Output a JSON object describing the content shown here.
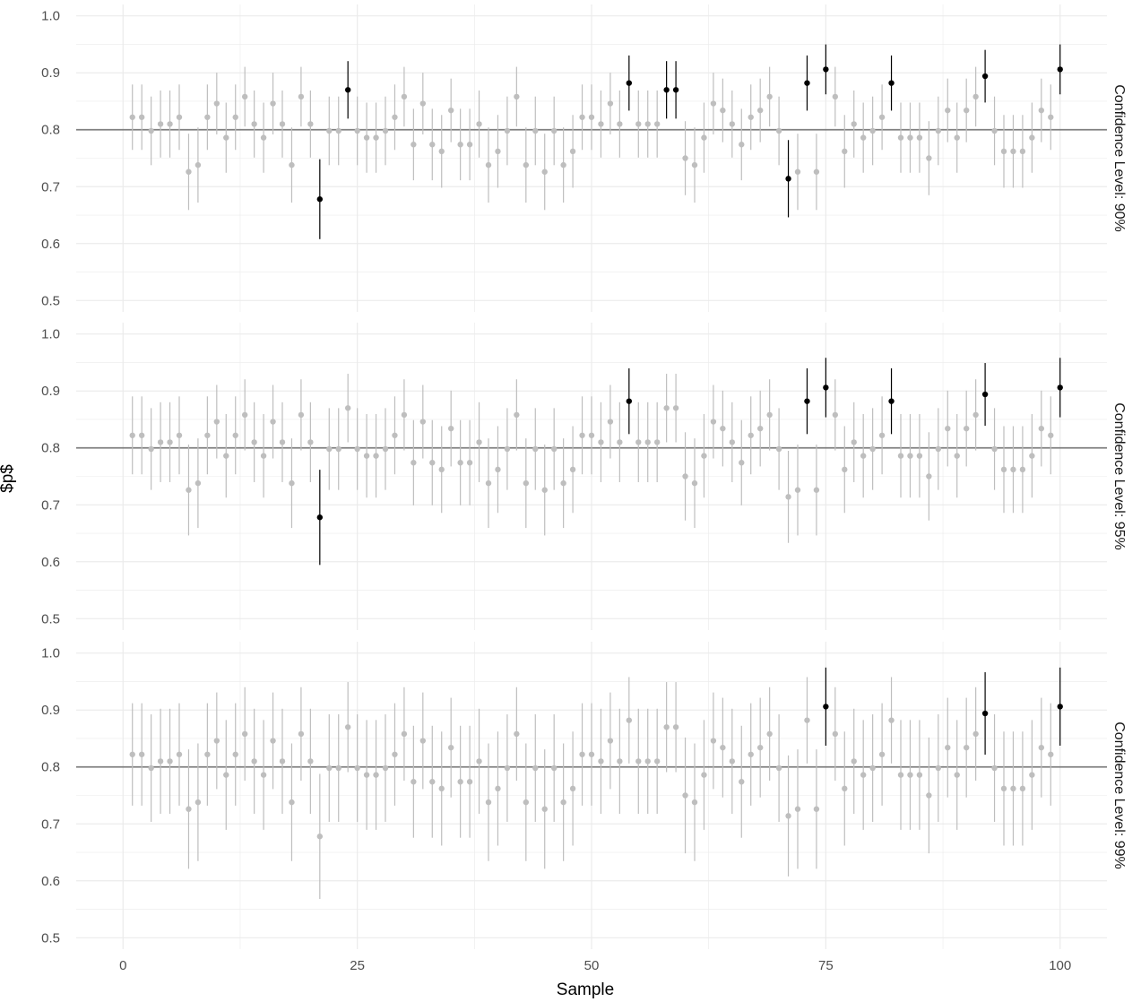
{
  "chart_data": {
    "type": "scatter",
    "subtype": "errorbar-facets",
    "xlabel": "Sample",
    "ylabel": "$p$",
    "xlim": [
      -5,
      105
    ],
    "ylim": [
      0.48,
      1.02
    ],
    "x_ticks": [
      0,
      25,
      50,
      75,
      100
    ],
    "x_tick_labels": [
      "0",
      "25",
      "50",
      "75",
      "100"
    ],
    "y_ticks": [
      0.5,
      0.6,
      0.7,
      0.8,
      0.9,
      1.0
    ],
    "y_tick_labels": [
      "0.5",
      "0.6",
      "0.7",
      "0.8",
      "0.9",
      "1.0"
    ],
    "true_p": 0.8,
    "grid": true,
    "colors": {
      "covers": "#bebebe",
      "misses": "#000000",
      "reference_line": "#808080",
      "grid": "#ebebeb"
    },
    "samples_x": [
      1,
      2,
      3,
      4,
      5,
      6,
      7,
      8,
      9,
      10,
      11,
      12,
      13,
      14,
      15,
      16,
      17,
      18,
      19,
      20,
      21,
      22,
      23,
      24,
      25,
      26,
      27,
      28,
      29,
      30,
      31,
      32,
      33,
      34,
      35,
      36,
      37,
      38,
      39,
      40,
      41,
      42,
      43,
      44,
      45,
      46,
      47,
      48,
      49,
      50,
      51,
      52,
      53,
      54,
      55,
      56,
      57,
      58,
      59,
      60,
      61,
      62,
      63,
      64,
      65,
      66,
      67,
      68,
      69,
      70,
      71,
      72,
      73,
      74,
      75,
      76,
      77,
      78,
      79,
      80,
      81,
      82,
      83,
      84,
      85,
      86,
      87,
      88,
      89,
      90,
      91,
      92,
      93,
      94,
      95,
      96,
      97,
      98,
      99,
      100
    ],
    "p_hat": [
      0.822,
      0.822,
      0.798,
      0.81,
      0.81,
      0.822,
      0.726,
      0.738,
      0.822,
      0.846,
      0.786,
      0.822,
      0.858,
      0.81,
      0.786,
      0.846,
      0.81,
      0.738,
      0.858,
      0.81,
      0.678,
      0.798,
      0.798,
      0.87,
      0.798,
      0.786,
      0.786,
      0.798,
      0.822,
      0.858,
      0.774,
      0.846,
      0.774,
      0.762,
      0.834,
      0.774,
      0.774,
      0.81,
      0.738,
      0.762,
      0.798,
      0.858,
      0.738,
      0.798,
      0.726,
      0.798,
      0.738,
      0.762,
      0.822,
      0.822,
      0.81,
      0.846,
      0.81,
      0.882,
      0.81,
      0.81,
      0.81,
      0.87,
      0.87,
      0.75,
      0.738,
      0.786,
      0.846,
      0.834,
      0.81,
      0.774,
      0.822,
      0.834,
      0.858,
      0.798,
      0.714,
      0.726,
      0.882,
      0.726,
      0.906,
      0.858,
      0.762,
      0.81,
      0.786,
      0.798,
      0.822,
      0.882,
      0.786,
      0.786,
      0.786,
      0.75,
      0.798,
      0.834,
      0.786,
      0.834,
      0.858,
      0.894,
      0.798,
      0.762,
      0.762,
      0.762,
      0.786,
      0.834,
      0.822,
      0.906
    ],
    "panels": [
      {
        "label": "Confidence Level: 90%",
        "z": 1.645,
        "misses": [
          21,
          24,
          54,
          58,
          59,
          71,
          73,
          75,
          82,
          92,
          100
        ]
      },
      {
        "label": "Confidence Level: 95%",
        "z": 1.96,
        "misses": [
          21,
          54,
          73,
          75,
          82,
          92,
          100
        ]
      },
      {
        "label": "Confidence Level: 99%",
        "z": 2.576,
        "misses": [
          75,
          92,
          100
        ]
      }
    ]
  }
}
